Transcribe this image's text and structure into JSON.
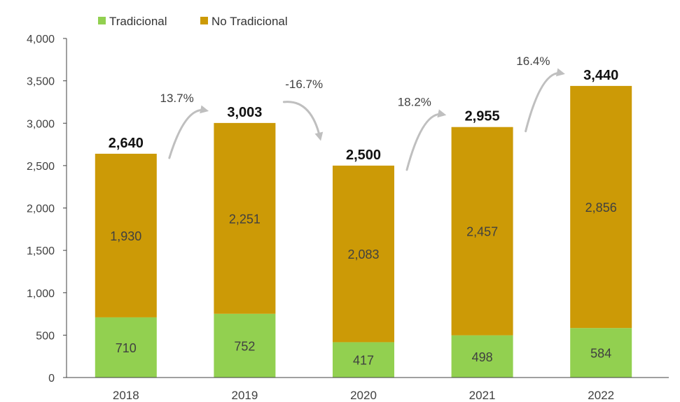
{
  "colors": {
    "tradicional": "#92d050",
    "no_tradicional": "#cc9a06",
    "arrow": "#bfbfbf",
    "axis": "#404040"
  },
  "chart_data": {
    "type": "bar",
    "stacked": true,
    "categories": [
      "2018",
      "2019",
      "2020",
      "2021",
      "2022"
    ],
    "series": [
      {
        "name": "Tradicional",
        "values": [
          710,
          752,
          417,
          498,
          584
        ]
      },
      {
        "name": "No Tradicional",
        "values": [
          1930,
          2251,
          2083,
          2457,
          2856
        ]
      }
    ],
    "totals": [
      2640,
      3003,
      2500,
      2955,
      3440
    ],
    "total_labels": [
      "2,640",
      "3,003",
      "2,500",
      "2,955",
      "3,440"
    ],
    "segment_labels": {
      "tradicional": [
        "710",
        "752",
        "417",
        "498",
        "584"
      ],
      "no_tradicional": [
        "1,930",
        "2,251",
        "2,083",
        "2,457",
        "2,856"
      ]
    },
    "growth_labels": [
      "13.7%",
      "-16.7%",
      "18.2%",
      "16.4%"
    ],
    "yticks": [
      0,
      500,
      1000,
      1500,
      2000,
      2500,
      3000,
      3500,
      4000
    ],
    "ytick_labels": [
      "0",
      "500",
      "1,000",
      "1,500",
      "2,000",
      "2,500",
      "3,000",
      "3,500",
      "4,000"
    ],
    "ylim": [
      0,
      4000
    ],
    "grid": false,
    "legend_position": "top-left"
  }
}
